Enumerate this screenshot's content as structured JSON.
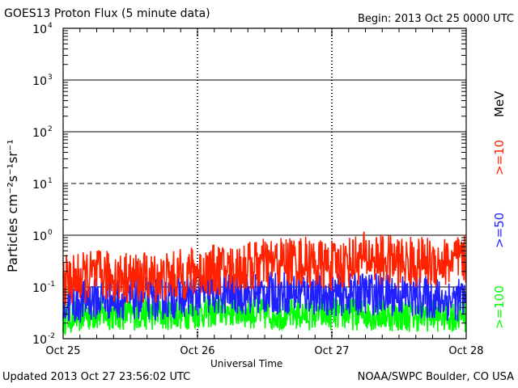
{
  "title": "GOES13 Proton Flux (5 minute data)",
  "begin": "Begin: 2013 Oct 25 0000 UTC",
  "updated": "Updated 2013 Oct 27 23:56:02 UTC",
  "source": "NOAA/SWPC Boulder, CO USA",
  "colors": {
    "ge10": "#ff2200",
    "ge50": "#2020ff",
    "ge100": "#00ff00",
    "axis": "#000000"
  },
  "chart_data": {
    "type": "line",
    "xlabel": "Universal Time",
    "ylabel": "Particles cm⁻²s⁻¹sr⁻¹",
    "yscale": "log",
    "ylim": [
      0.01,
      10000
    ],
    "xlim": [
      "2013-10-25 00:00",
      "2013-10-28 00:00"
    ],
    "x_ticks": [
      "Oct 25",
      "Oct 26",
      "Oct 27",
      "Oct 28"
    ],
    "y_ticks": [
      {
        "base": "10",
        "exp": "-2"
      },
      {
        "base": "10",
        "exp": "-1"
      },
      {
        "base": "10",
        "exp": "0"
      },
      {
        "base": "10",
        "exp": "1"
      },
      {
        "base": "10",
        "exp": "2"
      },
      {
        "base": "10",
        "exp": "3"
      },
      {
        "base": "10",
        "exp": "4"
      }
    ],
    "unit_label": "MeV",
    "series": [
      {
        "name": ">=10",
        "x": [
          "2013-10-25 00:00",
          "2013-10-25 06:00",
          "2013-10-25 12:00",
          "2013-10-25 18:00",
          "2013-10-26 00:00",
          "2013-10-26 06:00",
          "2013-10-26 12:00",
          "2013-10-26 18:00",
          "2013-10-27 00:00",
          "2013-10-27 06:00",
          "2013-10-27 12:00",
          "2013-10-27 18:00",
          "2013-10-27 23:55"
        ],
        "y": [
          0.13,
          0.17,
          0.15,
          0.15,
          0.2,
          0.22,
          0.28,
          0.32,
          0.25,
          0.38,
          0.3,
          0.3,
          0.32
        ]
      },
      {
        "name": ">=50",
        "x": [
          "2013-10-25 00:00",
          "2013-10-25 06:00",
          "2013-10-25 12:00",
          "2013-10-25 18:00",
          "2013-10-26 00:00",
          "2013-10-26 06:00",
          "2013-10-26 12:00",
          "2013-10-26 18:00",
          "2013-10-27 00:00",
          "2013-10-27 06:00",
          "2013-10-27 12:00",
          "2013-10-27 18:00",
          "2013-10-27 23:55"
        ],
        "y": [
          0.045,
          0.06,
          0.06,
          0.06,
          0.07,
          0.075,
          0.075,
          0.08,
          0.07,
          0.075,
          0.07,
          0.06,
          0.055
        ]
      },
      {
        "name": ">=100",
        "x": [
          "2013-10-25 00:00",
          "2013-10-25 06:00",
          "2013-10-25 12:00",
          "2013-10-25 18:00",
          "2013-10-26 00:00",
          "2013-10-26 06:00",
          "2013-10-26 12:00",
          "2013-10-26 18:00",
          "2013-10-27 00:00",
          "2013-10-27 06:00",
          "2013-10-27 12:00",
          "2013-10-27 18:00",
          "2013-10-27 23:55"
        ],
        "y": [
          0.025,
          0.03,
          0.03,
          0.03,
          0.032,
          0.035,
          0.03,
          0.03,
          0.03,
          0.03,
          0.028,
          0.028,
          0.028
        ]
      }
    ],
    "grid": true
  }
}
